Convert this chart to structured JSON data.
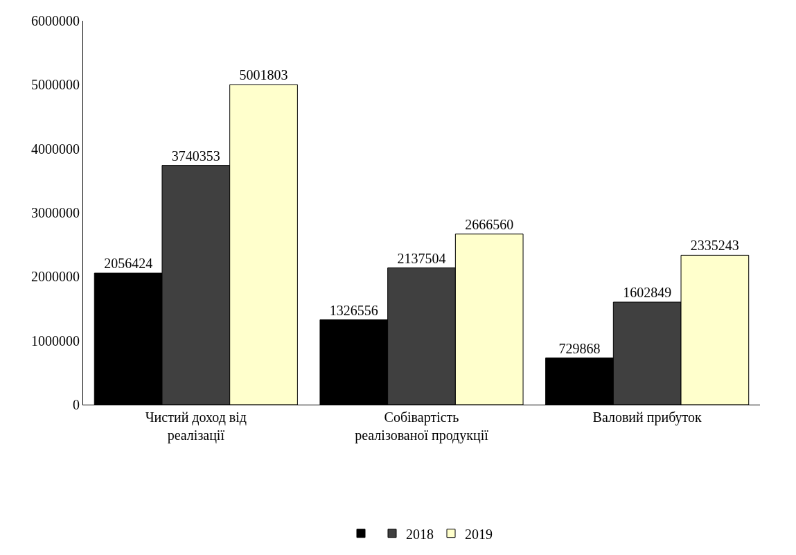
{
  "chart_data": {
    "type": "bar",
    "categories": [
      "Чистий доход від реалізації",
      "Собівартість реалізованої продукції",
      "Валовий прибуток"
    ],
    "series": [
      {
        "color": "#000000",
        "values": [
          2056424,
          1326556,
          729868
        ]
      },
      {
        "name": "2018",
        "color": "#404040",
        "values": [
          3740353,
          2137504,
          1602849
        ]
      },
      {
        "name": "2019",
        "color": "#ffffcc",
        "values": [
          5001803,
          2666560,
          2335243
        ]
      }
    ],
    "ylim": [
      0,
      6000000
    ],
    "yticks": [
      0,
      1000000,
      2000000,
      3000000,
      4000000,
      5000000,
      6000000
    ],
    "data_labels": true,
    "legend": "bottom"
  }
}
